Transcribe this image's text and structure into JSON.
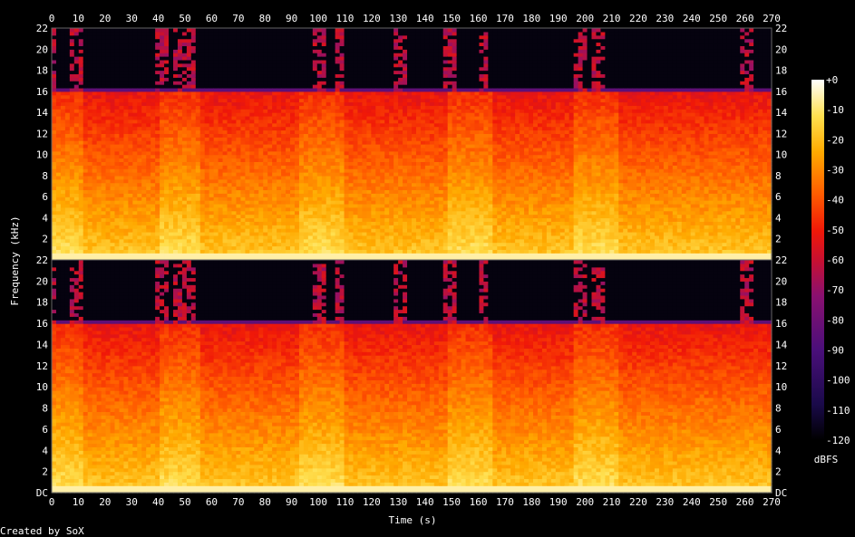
{
  "chart_data": {
    "type": "heatmap",
    "title": "",
    "xlabel": "Time (s)",
    "ylabel": "Frequency (kHz)",
    "xlim": [
      0,
      270
    ],
    "ylim": [
      0,
      22
    ],
    "x_ticks": [
      "0",
      "10",
      "20",
      "30",
      "40",
      "50",
      "60",
      "70",
      "80",
      "90",
      "100",
      "110",
      "120",
      "130",
      "140",
      "150",
      "160",
      "170",
      "180",
      "190",
      "200",
      "210",
      "220",
      "230",
      "240",
      "250",
      "260",
      "270"
    ],
    "y_ticks_top": [
      "2",
      "4",
      "6",
      "8",
      "10",
      "12",
      "14",
      "16",
      "18",
      "20",
      "22"
    ],
    "y_ticks_bottom": [
      "DC",
      "2",
      "4",
      "6",
      "8",
      "10",
      "12",
      "14",
      "16",
      "18",
      "20",
      "22"
    ],
    "channels": 2,
    "lowpass_cutoff_khz": 16,
    "colorbar": {
      "label": "dBFS",
      "ticks": [
        "+0",
        "-10",
        "-20",
        "-30",
        "-40",
        "-50",
        "-60",
        "-70",
        "-80",
        "-90",
        "-100",
        "-110",
        "-120"
      ],
      "range": [
        -120,
        0
      ],
      "colors": [
        "#000000",
        "#1a0a4a",
        "#4a0f7a",
        "#8a1070",
        "#c81030",
        "#f01808",
        "#ff5a00",
        "#ffaa00",
        "#ffe050",
        "#ffffff"
      ]
    },
    "energy_profile": {
      "loud_segments_s": [
        [
          0,
          12
        ],
        [
          40,
          55
        ],
        [
          92,
          110
        ],
        [
          148,
          165
        ],
        [
          195,
          212
        ]
      ],
      "high_freq_bursts_s": [
        0,
        10,
        42,
        48,
        52,
        100,
        108,
        130,
        150,
        162,
        198,
        205,
        260
      ]
    },
    "footer": "Created by SoX"
  }
}
